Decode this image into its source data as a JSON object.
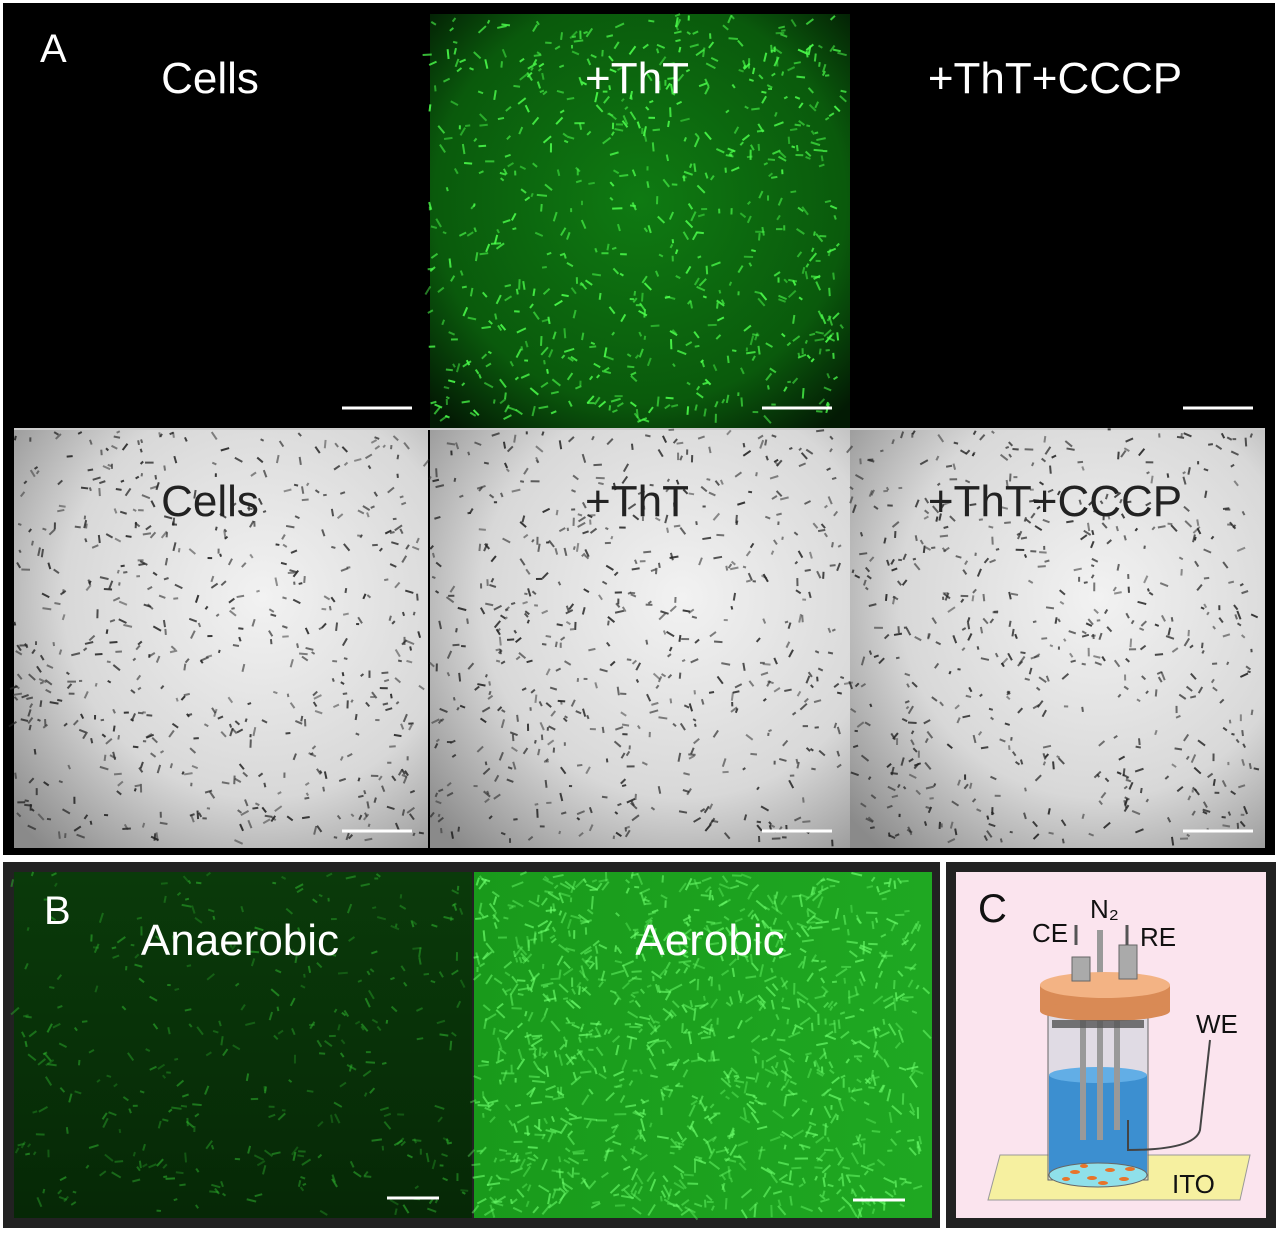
{
  "panel_a": {
    "label": "A",
    "top_row": [
      "Cells",
      "+ThT",
      "+ThT+CCCP"
    ],
    "bottom_row": [
      "Cells",
      "+ThT",
      "+ThT+CCCP"
    ]
  },
  "panel_b": {
    "label": "B",
    "images": [
      "Anaerobic",
      "Aerobic"
    ]
  },
  "panel_c": {
    "label": "C",
    "labels": {
      "ce": "CE",
      "n2": "N₂",
      "re": "RE",
      "we": "WE",
      "ito": "ITO"
    }
  }
}
